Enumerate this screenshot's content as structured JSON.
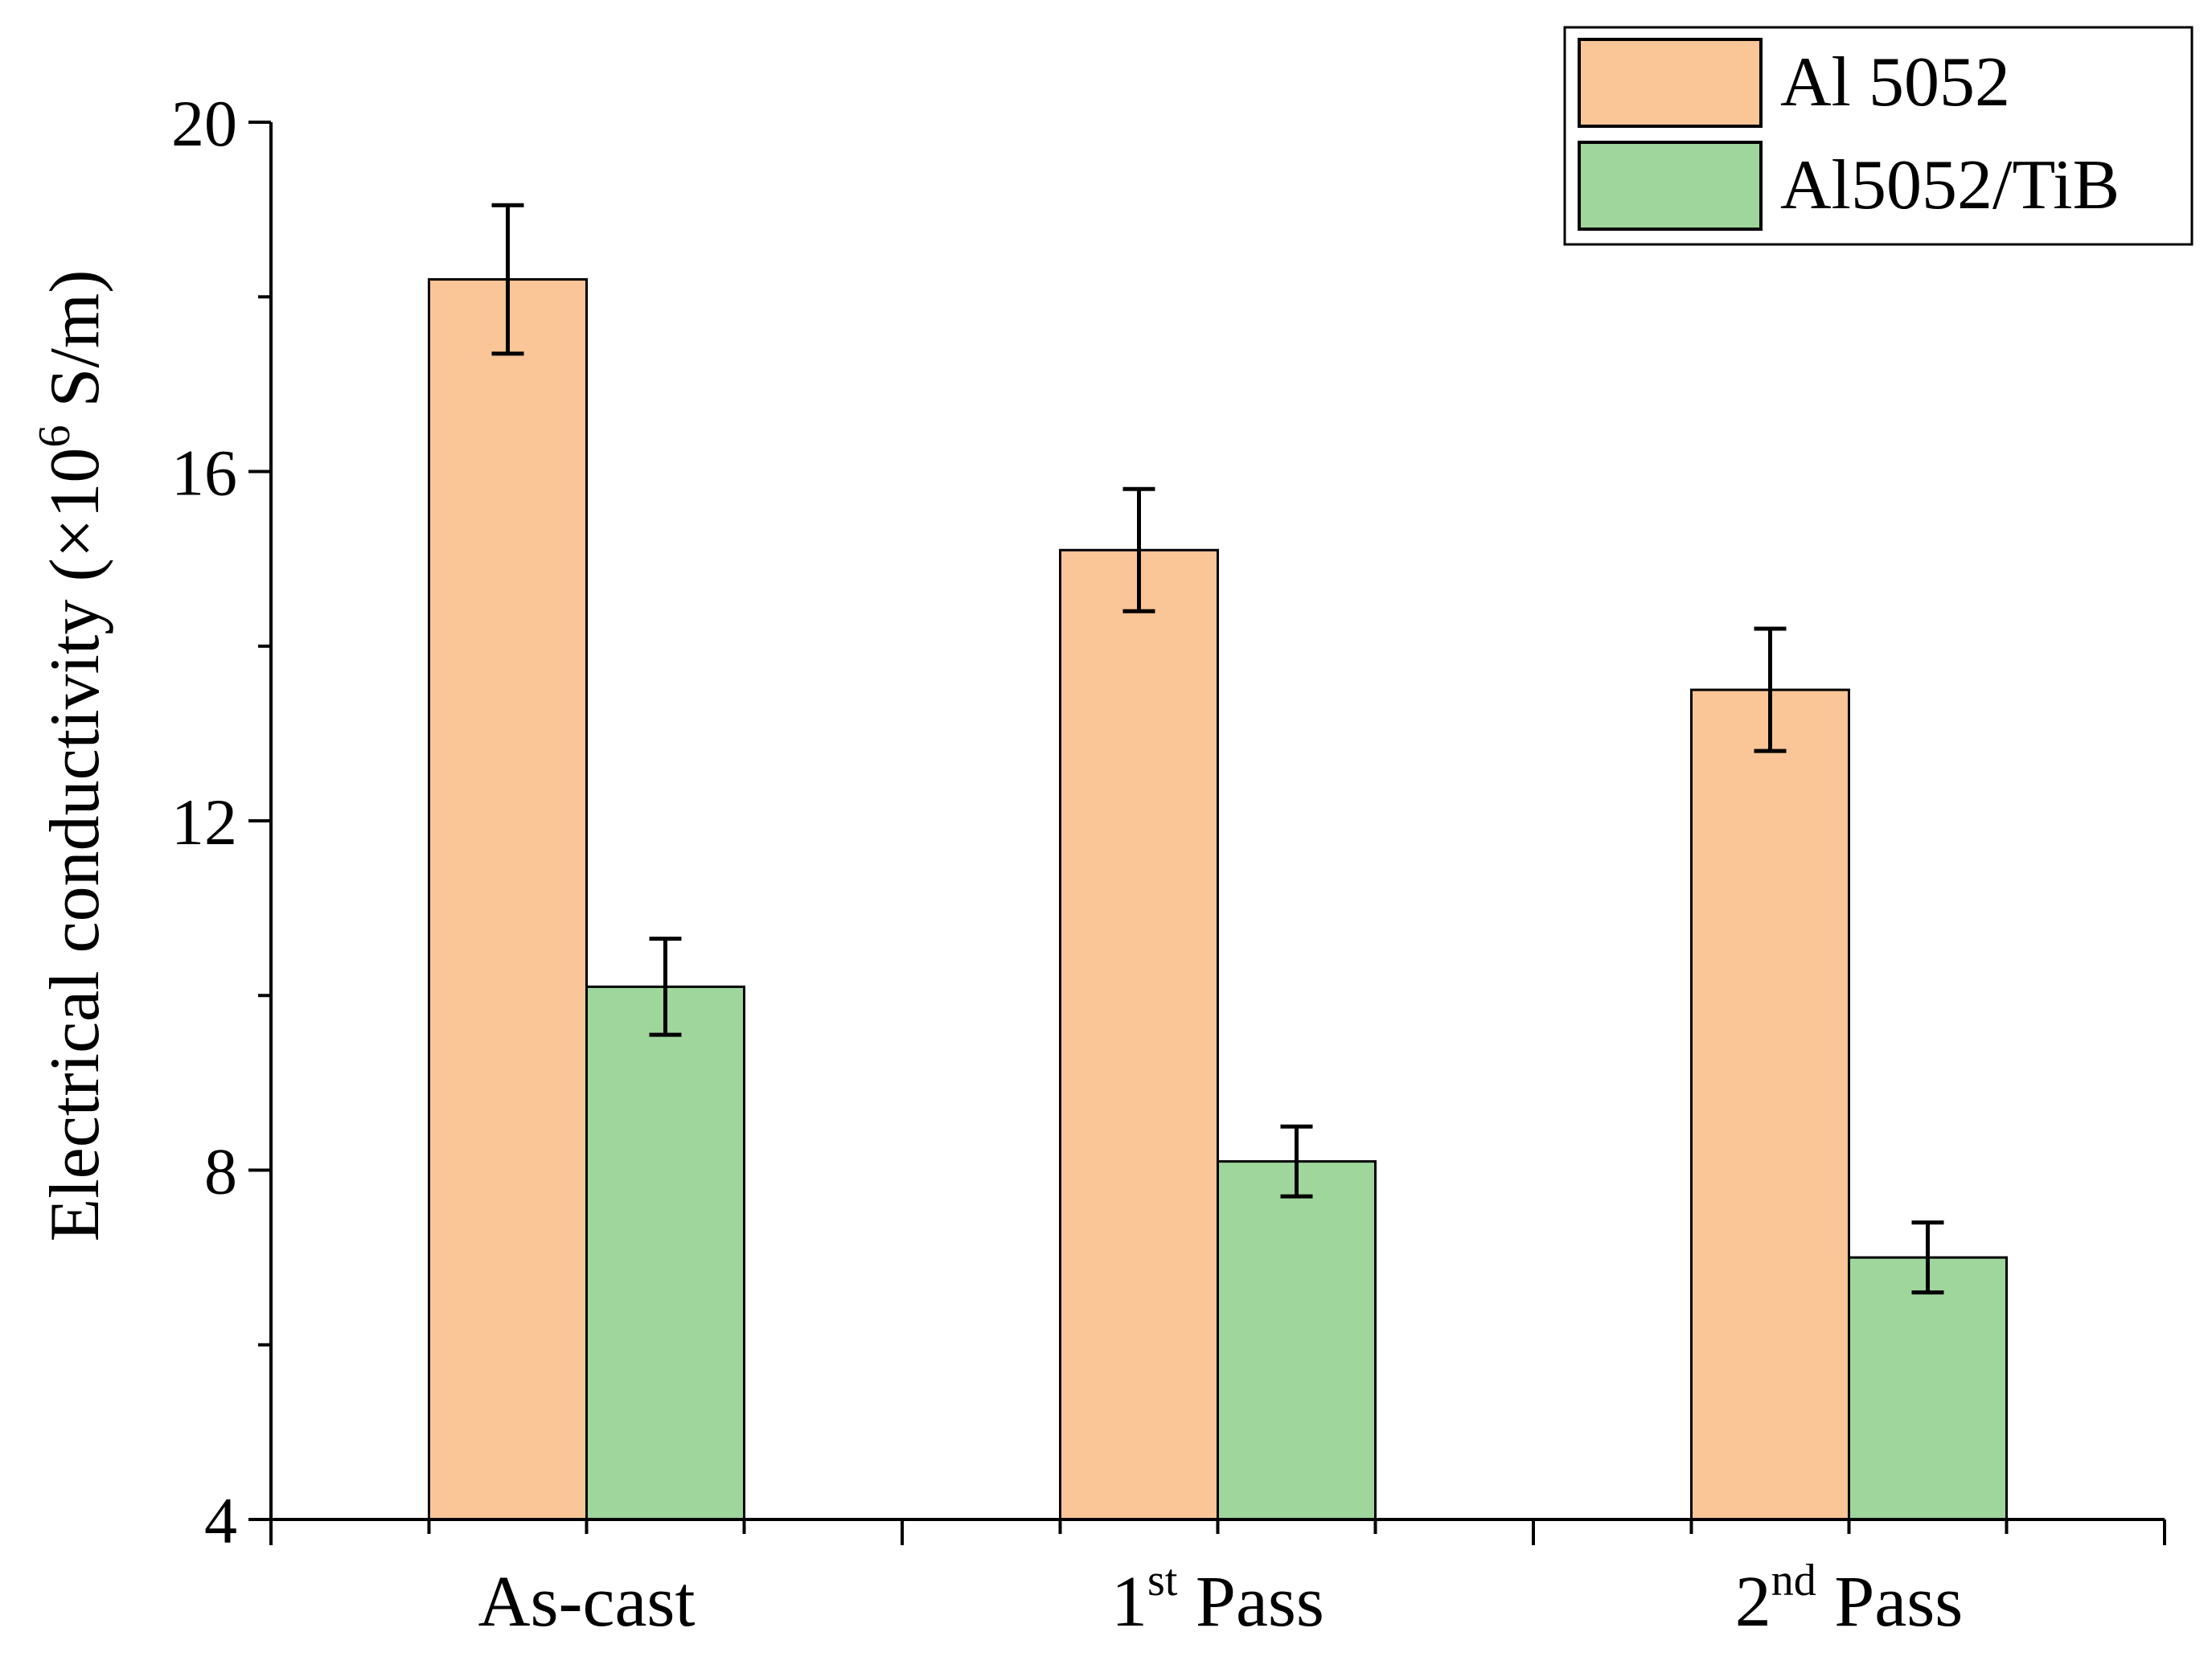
{
  "chart_data": {
    "type": "bar",
    "title": "",
    "xlabel": "",
    "ylabel": "Electrical conductivity (×10",
    "ylabel_sup": "6",
    "ylabel_suffix": " S/m)",
    "ylim": [
      4,
      20
    ],
    "yticks": [
      4,
      8,
      12,
      16,
      20
    ],
    "yticklabels": [
      "4",
      "8",
      "12",
      "16",
      "20"
    ],
    "categories": [
      {
        "base": "As-cast",
        "sup": "",
        "rest": ""
      },
      {
        "base": "1",
        "sup": "st",
        "rest": " Pass"
      },
      {
        "base": "2",
        "sup": "nd",
        "rest": " Pass"
      }
    ],
    "series": [
      {
        "name": "Al 5052",
        "color": "#fac597",
        "values": [
          18.2,
          15.1,
          13.5
        ],
        "errors": [
          0.85,
          0.7,
          0.7
        ]
      },
      {
        "name": "Al5052/TiB",
        "color": "#9fd69c",
        "values": [
          10.1,
          8.1,
          7.0
        ],
        "errors": [
          0.55,
          0.4,
          0.4
        ]
      }
    ],
    "legend_position": "top-right",
    "grid": false
  }
}
